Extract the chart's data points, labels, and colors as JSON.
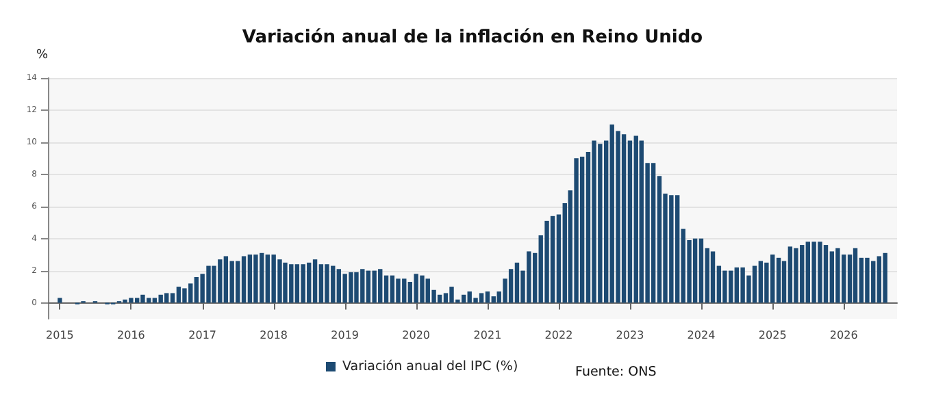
{
  "chart_data": {
    "type": "bar",
    "title": "Variación anual de la inflación en Reino Unido",
    "ylabel": "%",
    "x": [
      "2015-01",
      "2015-02",
      "2015-03",
      "2015-04",
      "2015-05",
      "2015-06",
      "2015-07",
      "2015-08",
      "2015-09",
      "2015-10",
      "2015-11",
      "2015-12",
      "2016-01",
      "2016-02",
      "2016-03",
      "2016-04",
      "2016-05",
      "2016-06",
      "2016-07",
      "2016-08",
      "2016-09",
      "2016-10",
      "2016-11",
      "2016-12",
      "2017-01",
      "2017-02",
      "2017-03",
      "2017-04",
      "2017-05",
      "2017-06",
      "2017-07",
      "2017-08",
      "2017-09",
      "2017-10",
      "2017-11",
      "2017-12",
      "2018-01",
      "2018-02",
      "2018-03",
      "2018-04",
      "2018-05",
      "2018-06",
      "2018-07",
      "2018-08",
      "2018-09",
      "2018-10",
      "2018-11",
      "2018-12",
      "2019-01",
      "2019-02",
      "2019-03",
      "2019-04",
      "2019-05",
      "2019-06",
      "2019-07",
      "2019-08",
      "2019-09",
      "2019-10",
      "2019-11",
      "2019-12",
      "2020-01",
      "2020-02",
      "2020-03",
      "2020-04",
      "2020-05",
      "2020-06",
      "2020-07",
      "2020-08",
      "2020-09",
      "2020-10",
      "2020-11",
      "2020-12",
      "2021-01",
      "2021-02",
      "2021-03",
      "2021-04",
      "2021-05",
      "2021-06",
      "2021-07",
      "2021-08",
      "2021-09",
      "2021-10",
      "2021-11",
      "2021-12",
      "2022-01",
      "2022-02",
      "2022-03",
      "2022-04",
      "2022-05",
      "2022-06",
      "2022-07",
      "2022-08",
      "2022-09",
      "2022-10",
      "2022-11",
      "2022-12",
      "2023-01",
      "2023-02",
      "2023-03",
      "2023-04",
      "2023-05",
      "2023-06",
      "2023-07",
      "2023-08",
      "2023-09",
      "2023-10",
      "2023-11",
      "2023-12",
      "2024-01",
      "2024-02",
      "2024-03",
      "2024-04",
      "2024-05",
      "2024-06",
      "2024-07",
      "2024-08",
      "2024-09",
      "2024-10",
      "2024-11",
      "2024-12",
      "2025-01",
      "2025-02",
      "2025-03",
      "2025-04",
      "2025-05",
      "2025-06",
      "2025-07",
      "2025-08",
      "2025-09",
      "2025-10",
      "2025-11",
      "2025-12",
      "2026-01",
      "2026-02",
      "2026-03",
      "2026-04",
      "2026-05",
      "2026-06",
      "2026-07",
      "2026-08"
    ],
    "series": [
      {
        "name": "Variación anual del IPC (%)",
        "color": "#1d4a72",
        "values": [
          0.3,
          0.0,
          0.0,
          -0.1,
          0.1,
          0.0,
          0.1,
          0.0,
          -0.1,
          -0.1,
          0.1,
          0.2,
          0.3,
          0.3,
          0.5,
          0.3,
          0.3,
          0.5,
          0.6,
          0.6,
          1.0,
          0.9,
          1.2,
          1.6,
          1.8,
          2.3,
          2.3,
          2.7,
          2.9,
          2.6,
          2.6,
          2.9,
          3.0,
          3.0,
          3.1,
          3.0,
          3.0,
          2.7,
          2.5,
          2.4,
          2.4,
          2.4,
          2.5,
          2.7,
          2.4,
          2.4,
          2.3,
          2.1,
          1.8,
          1.9,
          1.9,
          2.1,
          2.0,
          2.0,
          2.1,
          1.7,
          1.7,
          1.5,
          1.5,
          1.3,
          1.8,
          1.7,
          1.5,
          0.8,
          0.5,
          0.6,
          1.0,
          0.2,
          0.5,
          0.7,
          0.3,
          0.6,
          0.7,
          0.4,
          0.7,
          1.5,
          2.1,
          2.5,
          2.0,
          3.2,
          3.1,
          4.2,
          5.1,
          5.4,
          5.5,
          6.2,
          7.0,
          9.0,
          9.1,
          9.4,
          10.1,
          9.9,
          10.1,
          11.1,
          10.7,
          10.5,
          10.1,
          10.4,
          10.1,
          8.7,
          8.7,
          7.9,
          6.8,
          6.7,
          6.7,
          4.6,
          3.9,
          4.0,
          4.0,
          3.4,
          3.2,
          2.3,
          2.0,
          2.0,
          2.2,
          2.2,
          1.7,
          2.3,
          2.6,
          2.5,
          3.0,
          2.8,
          2.6,
          3.5,
          3.4,
          3.6,
          3.8,
          3.8,
          3.8,
          3.6,
          3.2,
          3.4,
          3.0,
          3.0,
          3.4,
          2.8,
          2.8,
          2.6,
          2.9,
          3.1
        ]
      }
    ],
    "xlim": [
      "2014-11",
      "2026-10"
    ],
    "xticks": [
      "2015",
      "2016",
      "2017",
      "2018",
      "2019",
      "2020",
      "2021",
      "2022",
      "2023",
      "2024",
      "2025",
      "2026"
    ],
    "ylim": [
      -1,
      14
    ],
    "yticks": [
      0,
      2,
      4,
      6,
      8,
      10,
      12,
      14
    ],
    "grid": "y",
    "legend": "bottom",
    "annotations": [
      "Fuente: ONS"
    ]
  }
}
